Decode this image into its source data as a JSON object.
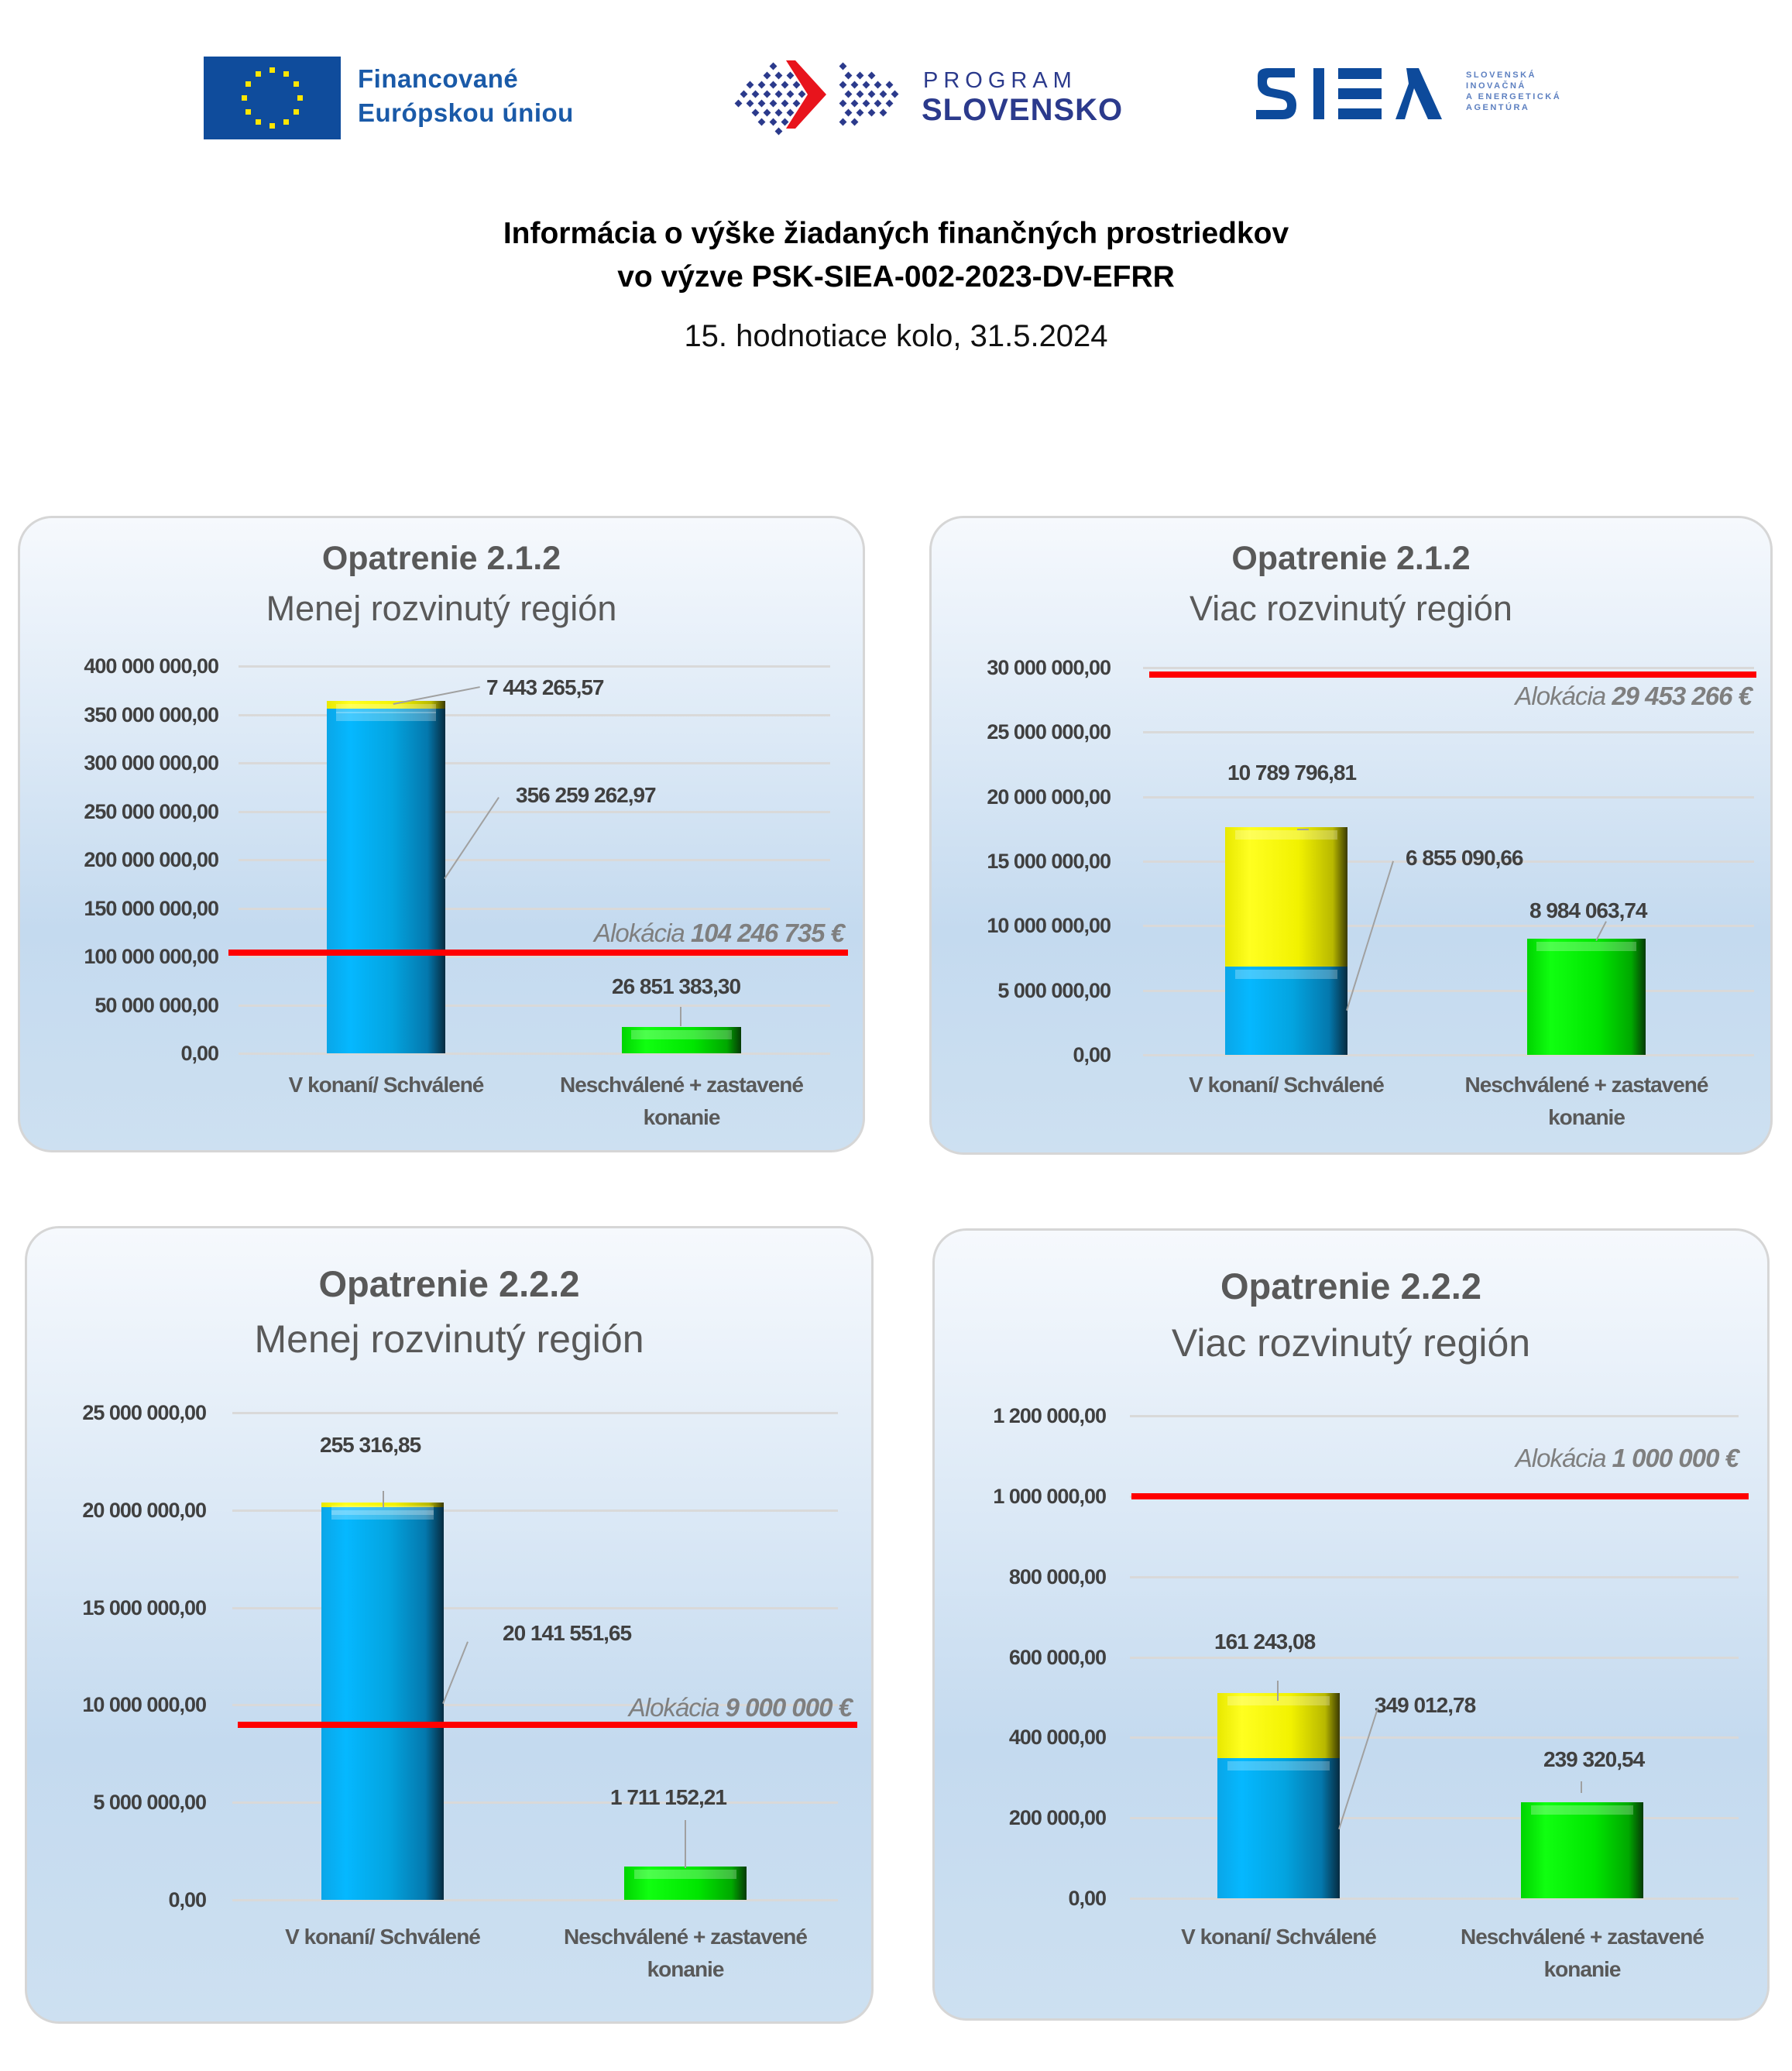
{
  "header": {
    "eu_text_line1": "Financované",
    "eu_text_line2": "Európskou úniou",
    "program_line1": "PROGRAM",
    "program_line2": "SLOVENSKO",
    "siea_small_1": "SLOVENSKÁ",
    "siea_small_2": "INOVAČNÁ",
    "siea_small_3": "A ENERGETICKÁ",
    "siea_small_4": "AGENTÚRA",
    "title_line1": "Informácia o výške žiadaných finančných prostriedkov",
    "title_line2": "vo výzve PSK-SIEA-002-2023-DV-EFRR",
    "subtitle": "15. hodnotiace kolo, 31.5.2024"
  },
  "colors": {
    "approved_blue": "#05b8ff",
    "pending_yellow": "#ffff00",
    "rejected_green": "#00ff00",
    "allocation_red": "#ff0000"
  },
  "charts": [
    {
      "title": "Opatrenie 2.1.2",
      "subtitle": "Menej rozvinutý región",
      "ticks": [
        "400 000 000,00",
        "350 000 000,00",
        "300 000 000,00",
        "250 000 000,00",
        "200 000 000,00",
        "150 000 000,00",
        "100 000 000,00",
        "50 000 000,00",
        "0,00"
      ],
      "alloc_prefix": "Alokácia ",
      "alloc_value": "104 246 735 €",
      "categories": [
        "V konaní/ Schválené",
        "Neschválené + zastavené konanie"
      ],
      "labels": {
        "blue": "356 259 262,97",
        "yellow": "7 443 265,57",
        "green": "26 851 383,30"
      }
    },
    {
      "title": "Opatrenie 2.1.2",
      "subtitle": "Viac rozvinutý región",
      "ticks": [
        "30 000 000,00",
        "25 000 000,00",
        "20 000 000,00",
        "15 000 000,00",
        "10 000 000,00",
        "5 000 000,00",
        "0,00"
      ],
      "alloc_prefix": "Alokácia ",
      "alloc_value": "29 453 266 €",
      "categories": [
        "V konaní/ Schválené",
        "Neschválené + zastavené konanie"
      ],
      "labels": {
        "blue": "6 855 090,66",
        "yellow": "10 789 796,81",
        "green": "8 984 063,74"
      }
    },
    {
      "title": "Opatrenie 2.2.2",
      "subtitle": "Menej rozvinutý región",
      "ticks": [
        "25 000 000,00",
        "20 000 000,00",
        "15 000 000,00",
        "10 000 000,00",
        "5 000 000,00",
        "0,00"
      ],
      "alloc_prefix": "Alokácia ",
      "alloc_value": "9 000 000 €",
      "categories": [
        "V konaní/ Schválené",
        "Neschválené + zastavené konanie"
      ],
      "labels": {
        "blue": "20 141 551,65",
        "yellow": "255 316,85",
        "green": "1 711 152,21"
      }
    },
    {
      "title": "Opatrenie 2.2.2",
      "subtitle": "Viac rozvinutý región",
      "ticks": [
        "1 200 000,00",
        "1 000 000,00",
        "800 000,00",
        "600 000,00",
        "400 000,00",
        "200 000,00",
        "0,00"
      ],
      "alloc_prefix": "Alokácia ",
      "alloc_value": "1 000 000 €",
      "categories": [
        "V konaní/ Schválené",
        "Neschválené + zastavené konanie"
      ],
      "labels": {
        "blue": "349 012,78",
        "yellow": "161 243,08",
        "green": "239 320,54"
      }
    }
  ],
  "chart_data": [
    {
      "type": "bar",
      "stacked": true,
      "title": "Opatrenie 2.1.2 — Menej rozvinutý región",
      "categories": [
        "V konaní/ Schválené",
        "Neschválené + zastavené konanie"
      ],
      "series": [
        {
          "name": "V konaní/ Schválené (modrá)",
          "color": "#05b8ff",
          "values": [
            356259262.97,
            0
          ]
        },
        {
          "name": "V konaní (žltá)",
          "color": "#ffff00",
          "values": [
            7443265.57,
            0
          ]
        },
        {
          "name": "Neschválené + zastavené konanie",
          "color": "#00ff00",
          "values": [
            0,
            26851383.3
          ]
        }
      ],
      "reference_line": {
        "label": "Alokácia 104 246 735 €",
        "value": 104246735,
        "color": "#ff0000"
      },
      "ylim": [
        0,
        400000000
      ],
      "yticks": [
        0,
        50000000,
        100000000,
        150000000,
        200000000,
        250000000,
        300000000,
        350000000,
        400000000
      ],
      "grid": true,
      "legend": "none"
    },
    {
      "type": "bar",
      "stacked": true,
      "title": "Opatrenie 2.1.2 — Viac rozvinutý región",
      "categories": [
        "V konaní/ Schválené",
        "Neschválené + zastavené konanie"
      ],
      "series": [
        {
          "name": "V konaní/ Schválené (modrá)",
          "color": "#05b8ff",
          "values": [
            6855090.66,
            0
          ]
        },
        {
          "name": "V konaní (žltá)",
          "color": "#ffff00",
          "values": [
            10789796.81,
            0
          ]
        },
        {
          "name": "Neschválené + zastavené konanie",
          "color": "#00ff00",
          "values": [
            0,
            8984063.74
          ]
        }
      ],
      "reference_line": {
        "label": "Alokácia 29 453 266 €",
        "value": 29453266,
        "color": "#ff0000"
      },
      "ylim": [
        0,
        30000000
      ],
      "yticks": [
        0,
        5000000,
        10000000,
        15000000,
        20000000,
        25000000,
        30000000
      ],
      "grid": true,
      "legend": "none"
    },
    {
      "type": "bar",
      "stacked": true,
      "title": "Opatrenie 2.2.2 — Menej rozvinutý región",
      "categories": [
        "V konaní/ Schválené",
        "Neschválené + zastavené konanie"
      ],
      "series": [
        {
          "name": "V konaní/ Schválené (modrá)",
          "color": "#05b8ff",
          "values": [
            20141551.65,
            0
          ]
        },
        {
          "name": "V konaní (žltá)",
          "color": "#ffff00",
          "values": [
            255316.85,
            0
          ]
        },
        {
          "name": "Neschválené + zastavené konanie",
          "color": "#00ff00",
          "values": [
            0,
            1711152.21
          ]
        }
      ],
      "reference_line": {
        "label": "Alokácia 9 000 000 €",
        "value": 9000000,
        "color": "#ff0000"
      },
      "ylim": [
        0,
        25000000
      ],
      "yticks": [
        0,
        5000000,
        10000000,
        15000000,
        20000000,
        25000000
      ],
      "grid": true,
      "legend": "none"
    },
    {
      "type": "bar",
      "stacked": true,
      "title": "Opatrenie 2.2.2 — Viac rozvinutý región",
      "categories": [
        "V konaní/ Schválené",
        "Neschválené + zastavené konanie"
      ],
      "series": [
        {
          "name": "V konaní/ Schválené (modrá)",
          "color": "#05b8ff",
          "values": [
            349012.78,
            0
          ]
        },
        {
          "name": "V konaní (žltá)",
          "color": "#ffff00",
          "values": [
            161243.08,
            0
          ]
        },
        {
          "name": "Neschválené + zastavené konanie",
          "color": "#00ff00",
          "values": [
            0,
            239320.54
          ]
        }
      ],
      "reference_line": {
        "label": "Alokácia 1 000 000 €",
        "value": 1000000,
        "color": "#ff0000"
      },
      "ylim": [
        0,
        1200000
      ],
      "yticks": [
        0,
        200000,
        400000,
        600000,
        800000,
        1000000,
        1200000
      ],
      "grid": true,
      "legend": "none"
    }
  ]
}
